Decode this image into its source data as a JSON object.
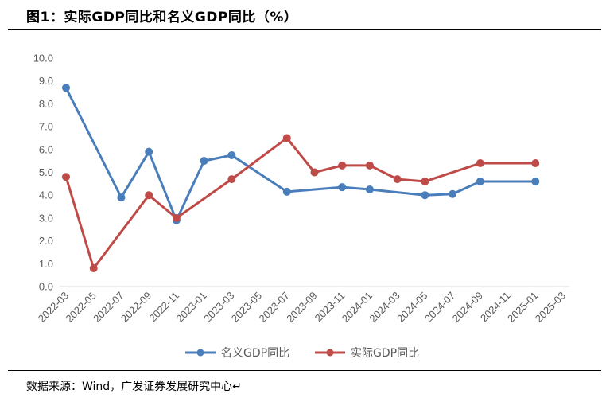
{
  "title": "图1：实际GDP同比和名义GDP同比（%）",
  "title_mark": "↵",
  "source": "数据来源：Wind，广发证券发展研究中心↵",
  "chart_data": {
    "type": "line",
    "title": "图1：实际GDP同比和名义GDP同比（%）",
    "xlabel": "",
    "ylabel": "",
    "ylim": [
      0,
      10
    ],
    "yticks": [
      "0.0",
      "1.0",
      "2.0",
      "3.0",
      "4.0",
      "5.0",
      "6.0",
      "7.0",
      "8.0",
      "9.0",
      "10.0"
    ],
    "grid": false,
    "legend_position": "bottom",
    "categories": [
      "2022-03",
      "2022-05",
      "2022-07",
      "2022-09",
      "2022-11",
      "2023-01",
      "2023-03",
      "2023-05",
      "2023-07",
      "2023-09",
      "2023-11",
      "2024-01",
      "2024-03",
      "2024-05",
      "2024-07",
      "2024-09",
      "2024-11",
      "2025-01",
      "2025-03"
    ],
    "series": [
      {
        "name": "名义GDP同比",
        "color": "#4a7ebb",
        "points": [
          {
            "x": "2022-03",
            "y": 8.7
          },
          {
            "x": "2022-07",
            "y": 3.9
          },
          {
            "x": "2022-09",
            "y": 5.9
          },
          {
            "x": "2022-11",
            "y": 2.9
          },
          {
            "x": "2023-01",
            "y": 5.5
          },
          {
            "x": "2023-03",
            "y": 5.75
          },
          {
            "x": "2023-07",
            "y": 4.15
          },
          {
            "x": "2023-11",
            "y": 4.35
          },
          {
            "x": "2024-01",
            "y": 4.25
          },
          {
            "x": "2024-05",
            "y": 4.0
          },
          {
            "x": "2024-07",
            "y": 4.05
          },
          {
            "x": "2024-09",
            "y": 4.6
          },
          {
            "x": "2025-01",
            "y": 4.6
          }
        ]
      },
      {
        "name": "实际GDP同比",
        "color": "#be4b48",
        "points": [
          {
            "x": "2022-03",
            "y": 4.8
          },
          {
            "x": "2022-05",
            "y": 0.8
          },
          {
            "x": "2022-09",
            "y": 4.0
          },
          {
            "x": "2022-11",
            "y": 3.0
          },
          {
            "x": "2023-03",
            "y": 4.7
          },
          {
            "x": "2023-07",
            "y": 6.5
          },
          {
            "x": "2023-09",
            "y": 5.0
          },
          {
            "x": "2023-11",
            "y": 5.3
          },
          {
            "x": "2024-01",
            "y": 5.3
          },
          {
            "x": "2024-03",
            "y": 4.7
          },
          {
            "x": "2024-05",
            "y": 4.6
          },
          {
            "x": "2024-09",
            "y": 5.4
          },
          {
            "x": "2025-01",
            "y": 5.4
          }
        ]
      }
    ]
  }
}
